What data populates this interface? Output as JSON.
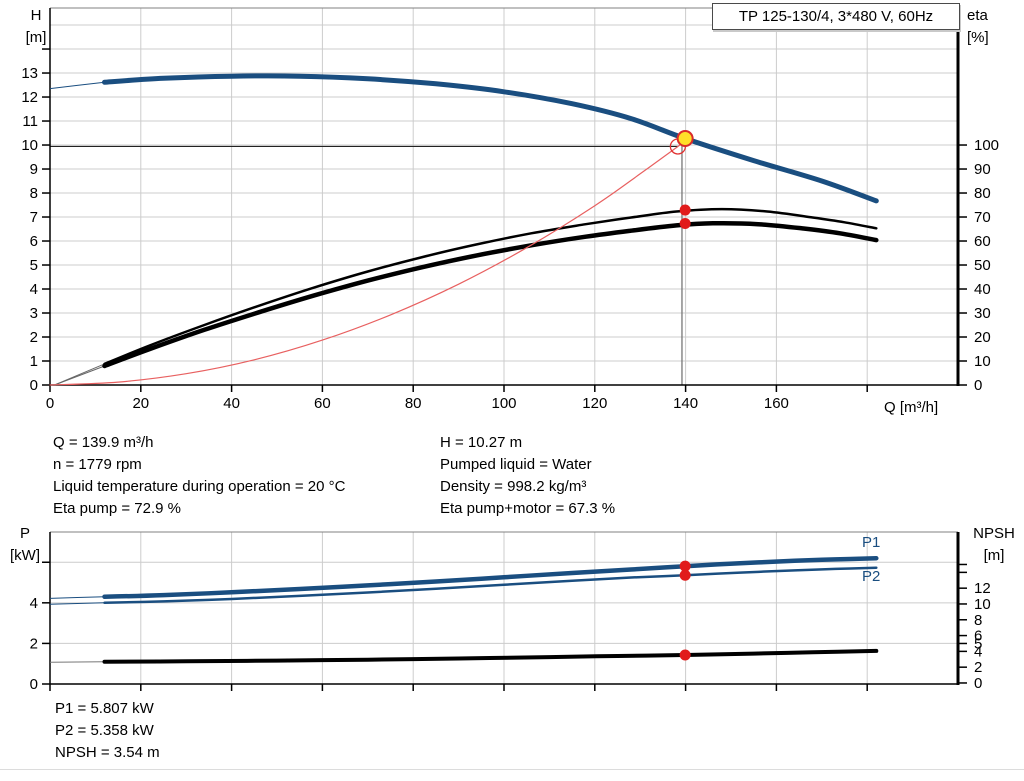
{
  "title_box": {
    "label": "TP 125-130/4, 3*480 V, 60Hz"
  },
  "operating_point_text": {
    "left_lines": [
      "Q = 139.9 m³/h",
      "n = 1779 rpm",
      "Liquid temperature during operation = 20 °C",
      "Eta pump = 72.9 %"
    ],
    "right_lines": [
      "H = 10.27 m",
      "Pumped liquid = Water",
      "Density = 998.2 kg/m³",
      "Eta pump+motor = 67.3 %"
    ],
    "bottom_lines": [
      "P1 = 5.807 kW",
      "P2 = 5.358 kW",
      "NPSH = 3.54 m"
    ]
  },
  "curve_labels": {
    "p1": "P1",
    "p2": "P2"
  },
  "colors": {
    "curve_blue": "#1a4e80",
    "curve_black": "#000000",
    "marker_red": "#e11b1b",
    "duty_yellow": "#ffdf29",
    "system_red": "#e86060",
    "grid": "#cccccc"
  },
  "chart_data": [
    {
      "id": "top",
      "type": "line",
      "title": "TP 125-130/4, 3*480 V, 60Hz",
      "xlabel": "Q [m³/h]",
      "x_range": [
        0,
        200
      ],
      "x_axis": {
        "ticks": [
          0,
          20,
          40,
          60,
          80,
          100,
          120,
          140,
          160,
          180
        ],
        "labeled": [
          0,
          20,
          40,
          60,
          80,
          100,
          120,
          140,
          160
        ],
        "grid": [
          20,
          40,
          60,
          80,
          100,
          120,
          140,
          160,
          180
        ]
      },
      "left_axis": {
        "label": [
          "H",
          "[m]"
        ],
        "range": [
          0,
          15.71
        ],
        "ticks": [
          0,
          1,
          2,
          3,
          4,
          5,
          6,
          7,
          8,
          9,
          10,
          11,
          12,
          13,
          14
        ],
        "labeled": [
          0,
          1,
          2,
          3,
          4,
          5,
          6,
          7,
          8,
          9,
          10,
          11,
          12,
          13
        ],
        "grid": [
          1,
          2,
          3,
          4,
          5,
          6,
          7,
          8,
          9,
          10,
          11,
          12,
          13,
          14,
          15
        ]
      },
      "right_axis": {
        "label": [
          "eta",
          "[%]"
        ],
        "range": [
          0,
          157.1
        ],
        "ticks": [
          0,
          10,
          20,
          30,
          40,
          50,
          60,
          70,
          80,
          90,
          100
        ],
        "labeled": [
          0,
          10,
          20,
          30,
          40,
          50,
          60,
          70,
          80,
          90,
          100
        ],
        "grid": []
      },
      "series": [
        {
          "name": "head-curve",
          "axis": "left",
          "color": "#1a4e80",
          "width": 5,
          "lead_color": "#1a4e80",
          "lead": [
            [
              0,
              12.35
            ],
            [
              12,
              12.62
            ]
          ],
          "points": [
            [
              12,
              12.62
            ],
            [
              25,
              12.78
            ],
            [
              40,
              12.87
            ],
            [
              55,
              12.87
            ],
            [
              70,
              12.76
            ],
            [
              85,
              12.55
            ],
            [
              100,
              12.22
            ],
            [
              115,
              11.72
            ],
            [
              128,
              11.1
            ],
            [
              139.9,
              10.27
            ],
            [
              155,
              9.35
            ],
            [
              170,
              8.5
            ],
            [
              182,
              7.67
            ]
          ]
        },
        {
          "name": "eta-pump-curve",
          "axis": "right",
          "color": "#000000",
          "width": 2.5,
          "lead_color": "#666666",
          "lead": [
            [
              1,
              0
            ],
            [
              12,
              8.8
            ]
          ],
          "points": [
            [
              12,
              8.8
            ],
            [
              22,
              16.5
            ],
            [
              34,
              25
            ],
            [
              46,
              33
            ],
            [
              58,
              40.5
            ],
            [
              70,
              47.3
            ],
            [
              82,
              53.3
            ],
            [
              94,
              58.6
            ],
            [
              106,
              63.2
            ],
            [
              118,
              67
            ],
            [
              128,
              69.8
            ],
            [
              138,
              72.3
            ],
            [
              148,
              73.3
            ],
            [
              158,
              72.3
            ],
            [
              168,
              69.8
            ],
            [
              175,
              67.8
            ],
            [
              182,
              65.3
            ]
          ]
        },
        {
          "name": "eta-pump-motor-curve",
          "axis": "right",
          "color": "#000000",
          "width": 4.5,
          "lead_color": "#666666",
          "lead": [
            [
              1,
              0
            ],
            [
              12,
              7.9
            ]
          ],
          "points": [
            [
              12,
              7.9
            ],
            [
              22,
              15
            ],
            [
              34,
              23
            ],
            [
              46,
              30.3
            ],
            [
              58,
              37.2
            ],
            [
              70,
              43.5
            ],
            [
              82,
              49.1
            ],
            [
              94,
              54
            ],
            [
              106,
              58.2
            ],
            [
              118,
              61.8
            ],
            [
              128,
              64.3
            ],
            [
              138,
              66.5
            ],
            [
              146,
              67.4
            ],
            [
              156,
              67
            ],
            [
              166,
              65.2
            ],
            [
              174,
              63.2
            ],
            [
              182,
              60.4
            ]
          ]
        },
        {
          "name": "system-curve",
          "axis": "left",
          "color": "#e86060",
          "width": 1.2,
          "lead_color": "#e86060",
          "lead": [],
          "points": [
            [
              0,
              0
            ],
            [
              15,
              0.12
            ],
            [
              30,
              0.47
            ],
            [
              45,
              1.05
            ],
            [
              60,
              1.87
            ],
            [
              75,
              2.92
            ],
            [
              90,
              4.2
            ],
            [
              105,
              5.72
            ],
            [
              120,
              7.47
            ],
            [
              130,
              8.8
            ],
            [
              138.3,
              9.94
            ],
            [
              140.6,
              10.27
            ]
          ]
        }
      ],
      "ref_lines": [
        {
          "dir": "h",
          "axis": "left",
          "value": 9.94,
          "x1": 0,
          "x2": 138.3,
          "color": "#222222",
          "w": 1.1
        },
        {
          "dir": "v",
          "x": 139.2,
          "axis": "left",
          "v1": 0,
          "v2": 10.15,
          "color": "#777777",
          "w": 1.3
        }
      ],
      "markers": [
        {
          "kind": "open",
          "x": 138.3,
          "axis": "left",
          "value": 9.94
        },
        {
          "kind": "duty",
          "x": 139.9,
          "axis": "left",
          "value": 10.27
        },
        {
          "kind": "dot",
          "x": 139.9,
          "axis": "right",
          "value": 72.9
        },
        {
          "kind": "dot",
          "x": 139.9,
          "axis": "right",
          "value": 67.3
        }
      ]
    },
    {
      "id": "bottom",
      "type": "line",
      "title": "",
      "xlabel": "",
      "x_range": [
        0,
        200
      ],
      "x_axis": {
        "ticks": [
          0,
          20,
          40,
          60,
          80,
          100,
          120,
          140,
          160,
          180
        ],
        "labeled": [],
        "grid": [
          20,
          40,
          60,
          80,
          100,
          120,
          140,
          160,
          180
        ]
      },
      "left_axis": {
        "label": [
          "P",
          "[kW]"
        ],
        "range": [
          0,
          7.49
        ],
        "ticks": [
          0,
          2,
          4,
          6
        ],
        "labeled": [
          0,
          2,
          4
        ],
        "grid": [
          2,
          4,
          6
        ]
      },
      "right_axis": {
        "label": [
          "NPSH",
          "[m]"
        ],
        "range": [
          -0.13,
          19.11
        ],
        "ticks": [
          0,
          2,
          4,
          5,
          6,
          8,
          10,
          12,
          14,
          15
        ],
        "labeled": [
          0,
          2,
          4,
          5,
          6,
          8,
          10,
          12
        ],
        "grid": []
      },
      "series": [
        {
          "name": "p1-curve",
          "axis": "left",
          "color": "#1a4e80",
          "width": 4.5,
          "lead_color": "#1a4e80",
          "lead": [
            [
              0,
              4.22
            ],
            [
              12,
              4.3
            ]
          ],
          "points": [
            [
              12,
              4.3
            ],
            [
              25,
              4.38
            ],
            [
              40,
              4.52
            ],
            [
              55,
              4.68
            ],
            [
              70,
              4.86
            ],
            [
              85,
              5.05
            ],
            [
              100,
              5.26
            ],
            [
              115,
              5.47
            ],
            [
              128,
              5.64
            ],
            [
              139.9,
              5.807
            ],
            [
              152,
              5.95
            ],
            [
              164,
              6.07
            ],
            [
              173,
              6.14
            ],
            [
              182,
              6.2
            ]
          ]
        },
        {
          "name": "p2-curve",
          "axis": "left",
          "color": "#1a4e80",
          "width": 2.5,
          "lead_color": "#1a4e80",
          "lead": [
            [
              0,
              3.93
            ],
            [
              12,
              4.0
            ]
          ],
          "points": [
            [
              12,
              4.0
            ],
            [
              25,
              4.07
            ],
            [
              40,
              4.19
            ],
            [
              55,
              4.34
            ],
            [
              70,
              4.51
            ],
            [
              85,
              4.69
            ],
            [
              100,
              4.89
            ],
            [
              115,
              5.09
            ],
            [
              128,
              5.25
            ],
            [
              139.9,
              5.358
            ],
            [
              152,
              5.49
            ],
            [
              164,
              5.6
            ],
            [
              173,
              5.67
            ],
            [
              182,
              5.73
            ]
          ]
        },
        {
          "name": "npsh-curve",
          "axis": "right",
          "color": "#000000",
          "width": 4,
          "lead_color": "#777777",
          "lead": [
            [
              0,
              2.62
            ],
            [
              12,
              2.68
            ]
          ],
          "points": [
            [
              12,
              2.68
            ],
            [
              30,
              2.74
            ],
            [
              50,
              2.83
            ],
            [
              70,
              2.95
            ],
            [
              90,
              3.1
            ],
            [
              110,
              3.28
            ],
            [
              125,
              3.42
            ],
            [
              139.9,
              3.54
            ],
            [
              155,
              3.72
            ],
            [
              168,
              3.88
            ],
            [
              182,
              4.06
            ]
          ]
        }
      ],
      "ref_lines": [],
      "markers": [
        {
          "kind": "dot",
          "x": 139.9,
          "axis": "left",
          "value": 5.807
        },
        {
          "kind": "dot",
          "x": 139.9,
          "axis": "left",
          "value": 5.358
        },
        {
          "kind": "dot",
          "x": 139.9,
          "axis": "right",
          "value": 3.54
        }
      ]
    }
  ]
}
